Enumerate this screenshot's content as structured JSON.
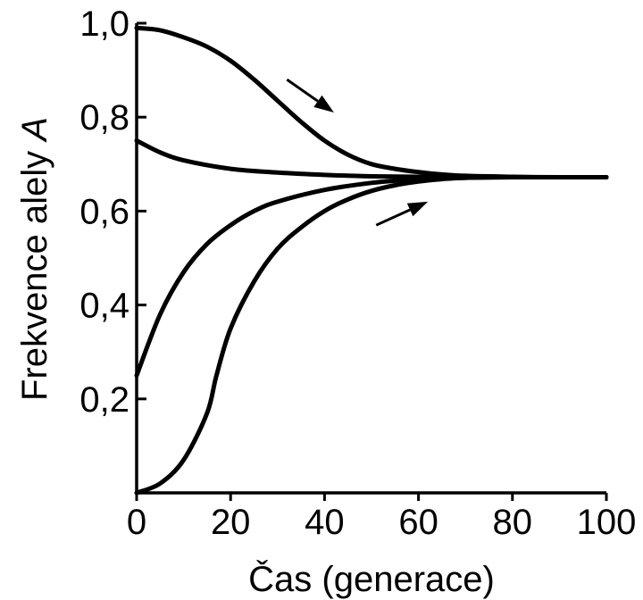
{
  "chart_data": {
    "type": "line",
    "xlabel": "Čas (generace)",
    "ylabel_prefix": "Frekvence alely ",
    "ylabel_symbol": "A",
    "xlim": [
      0,
      100
    ],
    "ylim": [
      0,
      1.0
    ],
    "x_ticks": [
      0,
      20,
      40,
      60,
      80,
      100
    ],
    "x_tick_labels": [
      "0",
      "20",
      "40",
      "60",
      "80",
      "100"
    ],
    "y_ticks": [
      0.2,
      0.4,
      0.6,
      0.8,
      1.0
    ],
    "y_tick_labels": [
      "0,2",
      "0,4",
      "0,6",
      "0,8",
      "1,0"
    ],
    "grid": false,
    "series": [
      {
        "x": [
          0,
          5,
          10,
          15,
          20,
          25,
          30,
          35,
          40,
          45,
          50,
          55,
          60,
          65,
          70,
          80,
          90,
          100
        ],
        "y": [
          0.99,
          0.985,
          0.97,
          0.95,
          0.92,
          0.88,
          0.835,
          0.79,
          0.75,
          0.72,
          0.7,
          0.69,
          0.683,
          0.678,
          0.675,
          0.673,
          0.672,
          0.672
        ]
      },
      {
        "x": [
          0,
          5,
          10,
          20,
          30,
          40,
          50,
          60,
          70,
          80,
          90,
          100
        ],
        "y": [
          0.75,
          0.725,
          0.708,
          0.69,
          0.682,
          0.677,
          0.674,
          0.673,
          0.672,
          0.672,
          0.672,
          0.672
        ]
      },
      {
        "x": [
          0,
          5,
          10,
          15,
          20,
          25,
          30,
          40,
          50,
          60,
          70,
          80,
          90,
          100
        ],
        "y": [
          0.25,
          0.38,
          0.47,
          0.53,
          0.57,
          0.6,
          0.62,
          0.645,
          0.66,
          0.668,
          0.671,
          0.672,
          0.672,
          0.672
        ]
      },
      {
        "x": [
          0,
          5,
          10,
          15,
          17,
          20,
          25,
          30,
          35,
          40,
          45,
          50,
          55,
          60,
          65,
          70,
          80,
          90,
          100
        ],
        "y": [
          0.0,
          0.02,
          0.07,
          0.17,
          0.25,
          0.35,
          0.45,
          0.52,
          0.565,
          0.6,
          0.625,
          0.643,
          0.655,
          0.663,
          0.668,
          0.671,
          0.672,
          0.672,
          0.672
        ]
      }
    ],
    "annotations": [
      {
        "type": "arrow",
        "from": [
          32,
          0.88
        ],
        "to": [
          42,
          0.81
        ]
      },
      {
        "type": "arrow",
        "from": [
          51,
          0.57
        ],
        "to": [
          62,
          0.62
        ]
      }
    ]
  }
}
